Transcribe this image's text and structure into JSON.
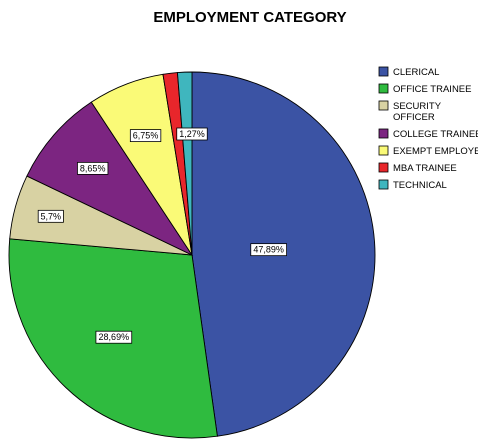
{
  "chart_data": {
    "type": "pie",
    "title": "EMPLOYMENT CATEGORY",
    "series": [
      {
        "name": "CLERICAL",
        "value": 47.89,
        "label": "47,89%",
        "color": "#3b53a4"
      },
      {
        "name": "OFFICE TRAINEE",
        "value": 28.69,
        "label": "28,69%",
        "color": "#2fbb3f"
      },
      {
        "name": "SECURITY OFFICER",
        "value": 5.7,
        "label": "5,7%",
        "color": "#d8d2a3"
      },
      {
        "name": "COLLEGE TRAINEE",
        "value": 8.65,
        "label": "8,65%",
        "color": "#7c2581"
      },
      {
        "name": "EXEMPT EMPLOYEE",
        "value": 6.75,
        "label": "6,75%",
        "color": "#fafa77"
      },
      {
        "name": "MBA TRAINEE",
        "value": 1.27,
        "label": "",
        "color": "#e8262b"
      },
      {
        "name": "TECHNICAL",
        "value": 1.27,
        "label": "1,27%",
        "color": "#3fb6be"
      }
    ],
    "legend_position": "right",
    "direction": "clockwise from top"
  }
}
